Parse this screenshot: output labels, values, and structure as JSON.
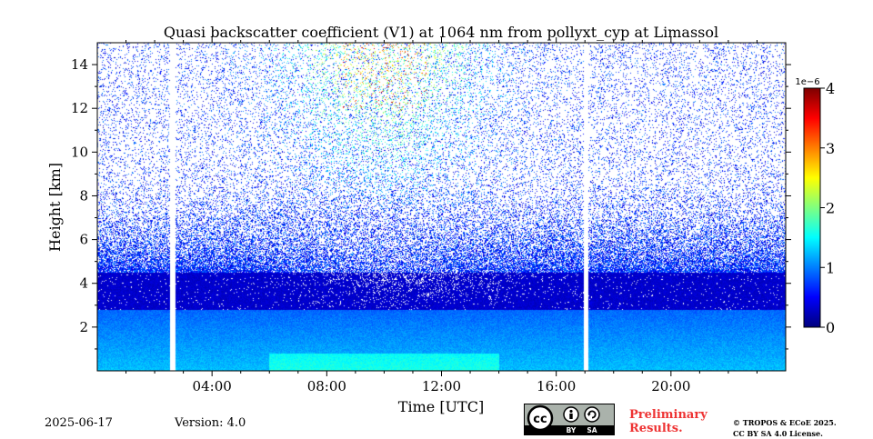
{
  "chart_data": {
    "type": "heatmap",
    "title": "Quasi backscatter coefficient (V1) at 1064 nm from pollyxt_cyp at Limassol",
    "xlabel": "Time [UTC]",
    "ylabel": "Height [km]",
    "x_unit": "hours UTC",
    "xlim": [
      0,
      24
    ],
    "ylim": [
      0,
      15
    ],
    "x_ticks": [
      4,
      8,
      12,
      16,
      20
    ],
    "x_tick_labels": [
      "04:00",
      "08:00",
      "12:00",
      "16:00",
      "20:00"
    ],
    "y_ticks": [
      2,
      4,
      6,
      8,
      10,
      12,
      14
    ],
    "y_tick_labels": [
      "2",
      "4",
      "6",
      "8",
      "10",
      "12",
      "14"
    ],
    "colorbar": {
      "min": 0,
      "max": 4,
      "scale_label": "1e−6",
      "ticks": [
        0,
        1,
        2,
        3,
        4
      ],
      "tick_labels": [
        "0",
        "1",
        "2",
        "3",
        "4"
      ],
      "colormap": "jet"
    },
    "data_gaps_hours": [
      [
        2.55,
        2.72
      ],
      [
        16.95,
        17.12
      ]
    ],
    "features": {
      "boundary_layer_top_km": 2.8,
      "dense_aerosol_layer_top_km": 4.5,
      "near_surface_value": 1.5,
      "upper_noise_peak_time_hours": 10,
      "upper_noise_peak_height_km": 14,
      "upper_noise_peak_value": 3.5
    }
  },
  "footer": {
    "date": "2025-06-17",
    "version": "Version: 4.0",
    "preliminary_line1": "Preliminary",
    "preliminary_line2": "Results.",
    "copyright_line1": "© TROPOS & ECoE 2025.",
    "copyright_line2": "CC BY SA 4.0 License.",
    "license_badge": {
      "main": "cc",
      "by": "BY",
      "sa": "SA",
      "by_icon": "person-icon",
      "sa_icon": "share-alike-icon"
    }
  }
}
